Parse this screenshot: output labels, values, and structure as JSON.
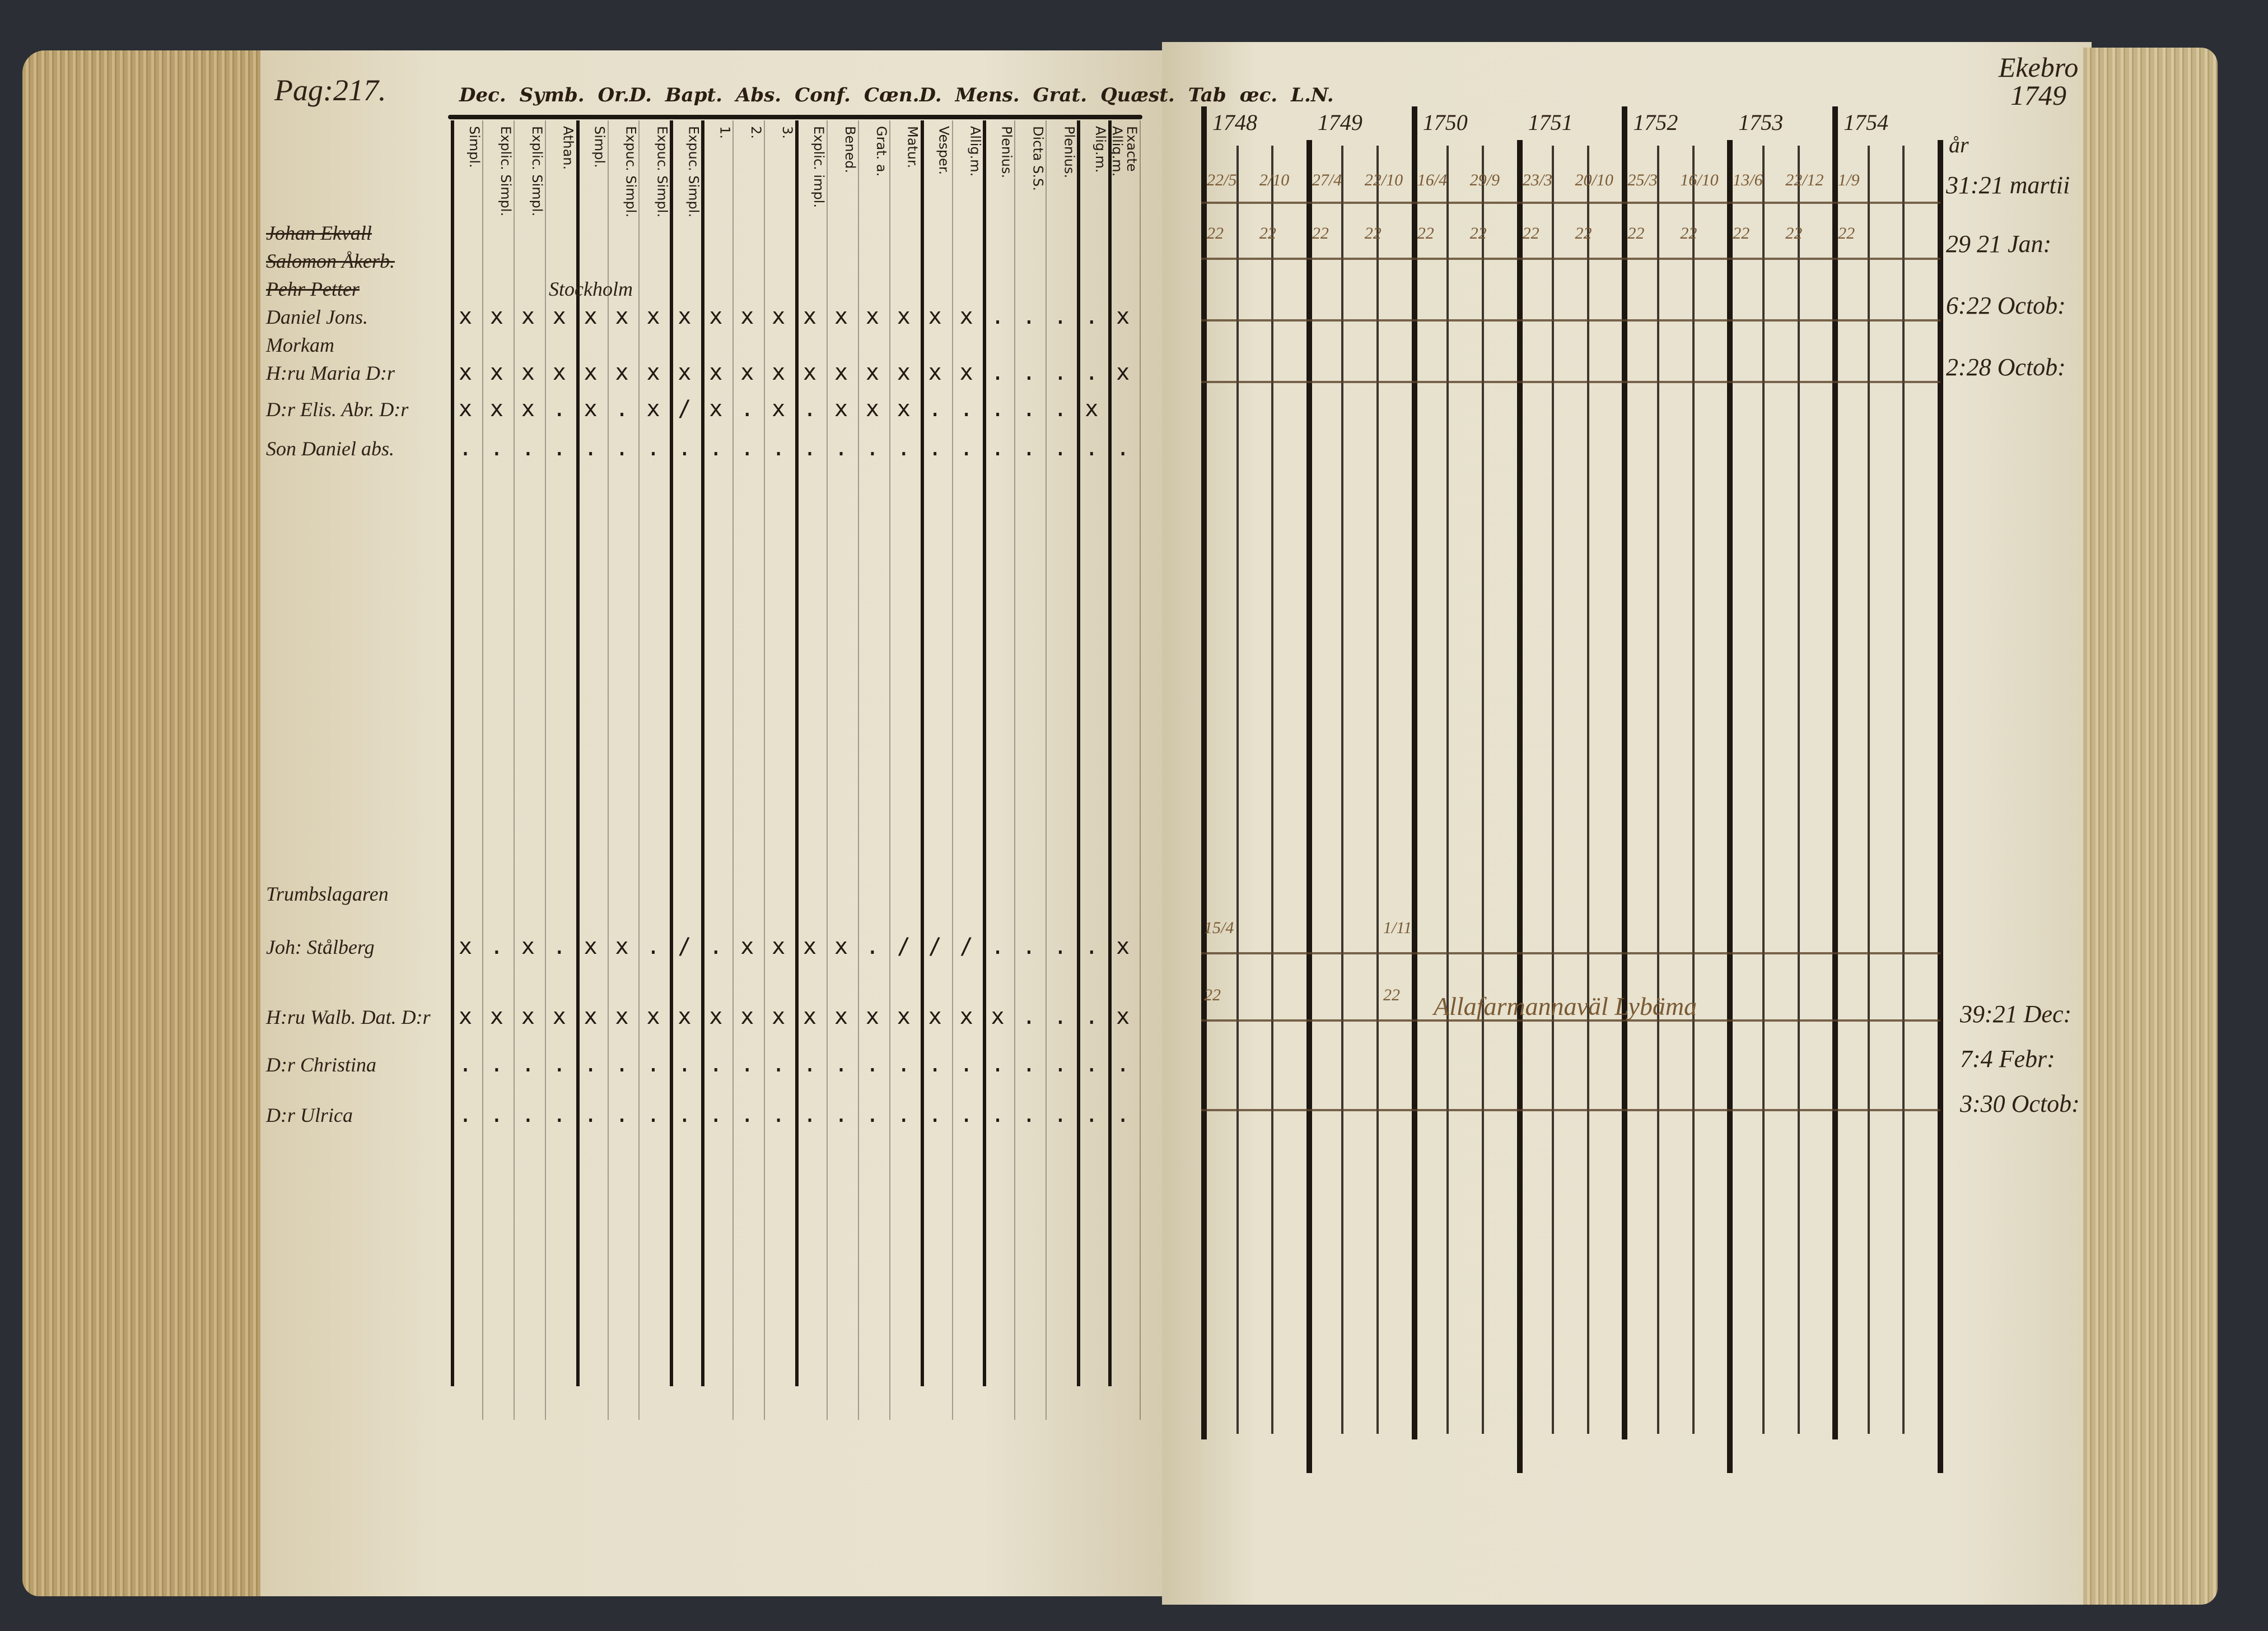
{
  "left_page": {
    "page_ref": "Pag:217.",
    "section_headers": [
      "Dec.",
      "Symb.",
      "Or.D.",
      "Bapt.",
      "Abs.",
      "Conf.",
      "Cœn.D.",
      "Mens.",
      "Grat.",
      "Quæst.",
      "Tab",
      "œc.",
      "L.N."
    ],
    "column_headers": [
      "Simpl.",
      "Explic. Simpl.",
      "Explic. Simpl.",
      "Athan.",
      "Simpl.",
      "Expuc. Simpl.",
      "Expuc. Simpl.",
      "Expuc. Simpl.",
      "1.",
      "2.",
      "3.",
      "Explic. impl.",
      "Bened.",
      "Grat. a.",
      "Matur.",
      "Vesper.",
      "Allig.m.",
      "Plenius.",
      "Dicta S.S.",
      "Plenius.",
      "Alig.m.",
      "Exacte Allig.m."
    ],
    "rows": [
      {
        "name": "Johan Ekvall",
        "marks": ""
      },
      {
        "name": "Salomon Åkerb.",
        "marks": ""
      },
      {
        "name": "Pehr Petter",
        "marks": "",
        "note": "Stockholm"
      },
      {
        "name": "Daniel Jons.",
        "marks": "xxxxxxxxxxxxxxxxx....x"
      },
      {
        "name": "Morkam",
        "marks": ""
      },
      {
        "name": "H:ru Maria D:r",
        "marks": "xxxxxxxxxxxxxxxxx....x"
      },
      {
        "name": "D:r Elis. Abr. D:r",
        "marks": "xxx.x.x/x.x.xxx.....x"
      },
      {
        "name": "Son Daniel abs.",
        "marks": "......................"
      },
      {
        "name": "Trumbslagaren",
        "marks": ""
      },
      {
        "name": "Joh: Stålberg",
        "marks": "x.x.xx./.xxxx.///....x"
      },
      {
        "name": "H:ru Walb. Dat. D:r",
        "marks": "xxxxxxxxxxxxxxxxxx...x"
      },
      {
        "name": "D:r Christina",
        "marks": "......................"
      },
      {
        "name": "D:r Ulrica",
        "marks": "......................"
      }
    ]
  },
  "right_page": {
    "top_note": "Ekebro 1749",
    "years": [
      "1748",
      "1749",
      "1750",
      "1751",
      "1752",
      "1753",
      "1754"
    ],
    "column_label": "år",
    "row1_numbers": [
      "22/5",
      "2/10",
      "27/4",
      "22/10",
      "16/4",
      "29/9",
      "23/3",
      "20/10",
      "25/3",
      "16/10",
      "13/6",
      "22/12",
      "1/9"
    ],
    "row2_numbers": [
      "22",
      "22",
      "22",
      "22",
      "22",
      "22",
      "22",
      "22",
      "22",
      "22",
      "22",
      "22",
      "22"
    ],
    "lower_row_numbers": [
      "15/4",
      "22",
      "1/11",
      "22"
    ],
    "lower_note": "Allafarmannaväl Lybäma",
    "dates_top": [
      "31:21 martii",
      "29 21 Jan:",
      "6:22 Octob:",
      "2:28 Octob:"
    ],
    "dates_bottom": [
      "39:21 Dec:",
      "7:4 Febr:",
      "3:30 Octob:"
    ]
  },
  "colors": {
    "paper": "#e8e2cf",
    "ink": "#221a12",
    "brown_ink": "#7a5a34",
    "background": "#2b2e34"
  }
}
